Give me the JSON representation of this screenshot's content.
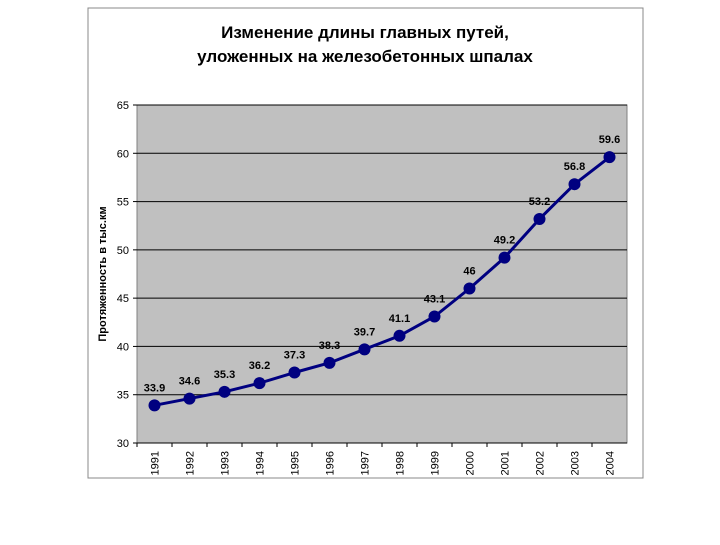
{
  "chart_data": {
    "type": "line",
    "title": [
      "Изменение длины главных путей,",
      "уложенных на железобетонных шпалах"
    ],
    "y_label": "Протяженность в тыс.км",
    "categories": [
      "1991",
      "1992",
      "1993",
      "1994",
      "1995",
      "1996",
      "1997",
      "1998",
      "1999",
      "2000",
      "2001",
      "2002",
      "2003",
      "2004"
    ],
    "values": [
      33.9,
      34.6,
      35.3,
      36.2,
      37.3,
      38.3,
      39.7,
      41.1,
      43.1,
      46,
      49.2,
      53.2,
      56.8,
      59.6
    ],
    "color": "#000080",
    "ylim": [
      30,
      65
    ],
    "yticks": [
      30,
      35,
      40,
      45,
      50,
      55,
      60,
      65
    ],
    "grid": true
  }
}
